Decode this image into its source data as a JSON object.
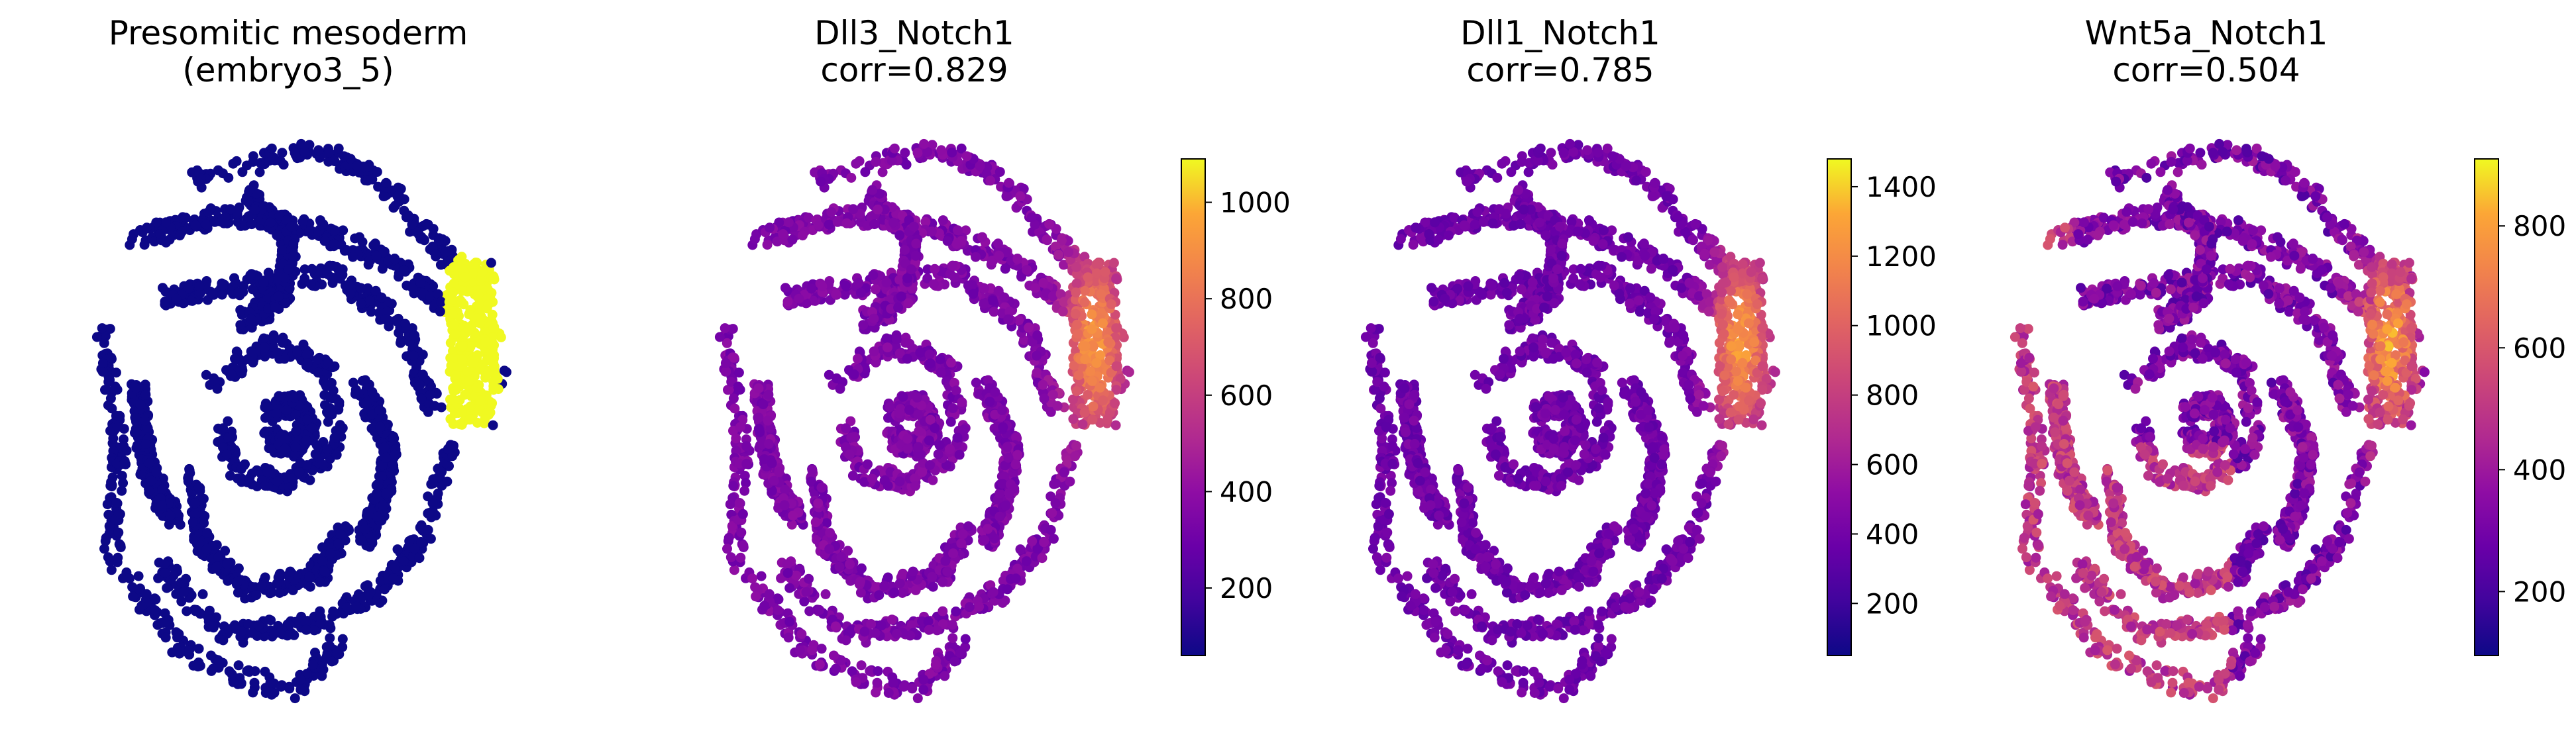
{
  "chart_data": [
    {
      "type": "scatter",
      "title": [
        "Presomitic mesoderm",
        "(embryo3_5)"
      ],
      "value_meaning": "binary",
      "colors": {
        "background_cells": "#0d0887",
        "highlighted_cells": "#f0f921"
      },
      "highlight_region": "right edge, upper-middle",
      "colorbar": null
    },
    {
      "type": "scatter",
      "title": [
        "Dll3_Notch1",
        "corr=0.829"
      ],
      "colormap": "plasma",
      "range": [
        60,
        1090
      ],
      "colorbar": {
        "ticks": [
          200,
          400,
          600,
          800,
          1000
        ],
        "vmin": 60,
        "vmax": 1090
      },
      "hotspot": "right edge, upper-middle"
    },
    {
      "type": "scatter",
      "title": [
        "Dll1_Notch1",
        "corr=0.785"
      ],
      "colormap": "plasma",
      "range": [
        50,
        1480
      ],
      "colorbar": {
        "ticks": [
          200,
          400,
          600,
          800,
          1000,
          1200,
          1400
        ],
        "vmin": 50,
        "vmax": 1480
      },
      "hotspot": "right edge, upper-middle"
    },
    {
      "type": "scatter",
      "title": [
        "Wnt5a_Notch1",
        "corr=0.504"
      ],
      "colormap": "plasma",
      "range": [
        95,
        910
      ],
      "colorbar": {
        "ticks": [
          200,
          400,
          600,
          800
        ],
        "vmin": 95,
        "vmax": 910
      },
      "hotspot": "right edge, upper-middle; widespread elevated values on lower-left tissue"
    }
  ]
}
